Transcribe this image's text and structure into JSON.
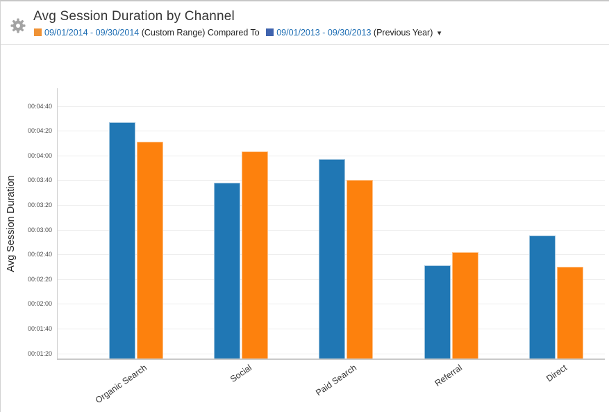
{
  "header": {
    "title": "Avg Session Duration by Channel",
    "legend": {
      "primary_swatch_color": "#ef9235",
      "primary_label": "09/01/2014 - 09/30/2014",
      "primary_suffix": "(Custom Range)",
      "connector": "Compared To",
      "secondary_swatch_color": "#3f63ae",
      "secondary_label": "09/01/2013 - 09/30/2013",
      "secondary_suffix": "(Previous Year)",
      "dropdown_caret": "▾"
    }
  },
  "chart_data": {
    "type": "bar",
    "title": "Avg Session Duration by Channel",
    "ylabel": "Avg Session Duration",
    "xlabel": "",
    "categories": [
      "Organic Search",
      "Social",
      "Paid Search",
      "Referral",
      "Direct"
    ],
    "series": [
      {
        "name": "09/01/2013 - 09/30/2013 (Previous Year)",
        "color": "#2077b4",
        "values": [
          "00:04:27",
          "00:03:38",
          "00:03:57",
          "00:02:31",
          "00:02:55"
        ],
        "values_seconds": [
          267,
          218,
          237,
          151,
          175
        ]
      },
      {
        "name": "09/01/2014 - 09/30/2014 (Custom Range)",
        "color": "#fd810d",
        "values": [
          "00:04:11",
          "00:04:03",
          "00:03:40",
          "00:02:42",
          "00:02:30"
        ],
        "values_seconds": [
          251,
          243,
          220,
          162,
          150
        ]
      }
    ],
    "y_ticks": [
      "00:01:20",
      "00:01:40",
      "00:02:00",
      "00:02:20",
      "00:02:40",
      "00:03:00",
      "00:03:20",
      "00:03:40",
      "00:04:00",
      "00:04:20",
      "00:04:40"
    ],
    "y_tick_seconds": [
      80,
      100,
      120,
      140,
      160,
      180,
      200,
      220,
      240,
      260,
      280
    ],
    "ylim_seconds": [
      76,
      296
    ],
    "grid": true,
    "legend_position": "top-header"
  }
}
